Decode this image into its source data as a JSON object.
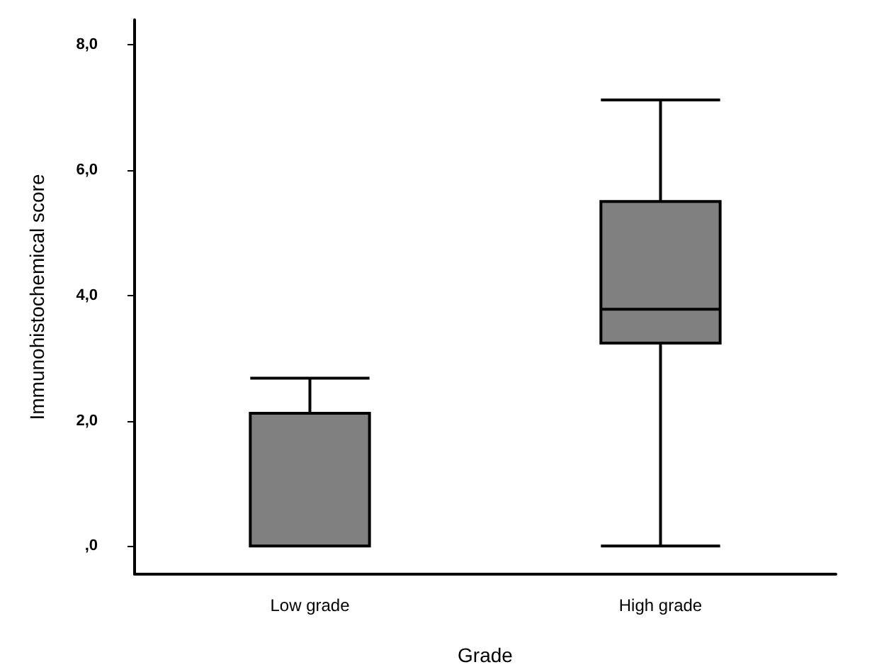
{
  "chart_data": {
    "type": "box",
    "xlabel": "Grade",
    "ylabel": "Immunohistochemical score",
    "categories": [
      "Low grade",
      "High grade"
    ],
    "color": "#808080",
    "boxes": [
      {
        "low": 0,
        "q1": 0,
        "median": 0,
        "q3": 2.12,
        "high": 2.68
      },
      {
        "low": 0,
        "q1": 3.24,
        "median": 3.78,
        "q3": 5.5,
        "high": 7.12
      }
    ],
    "ylim": [
      -0.45,
      8.4
    ],
    "yticks": [
      {
        "value": 0,
        "label": ",0"
      },
      {
        "value": 2,
        "label": "2,0"
      },
      {
        "value": 4,
        "label": "4,0"
      },
      {
        "value": 6,
        "label": "6,0"
      },
      {
        "value": 8,
        "label": "8,0"
      }
    ],
    "grid": false
  }
}
